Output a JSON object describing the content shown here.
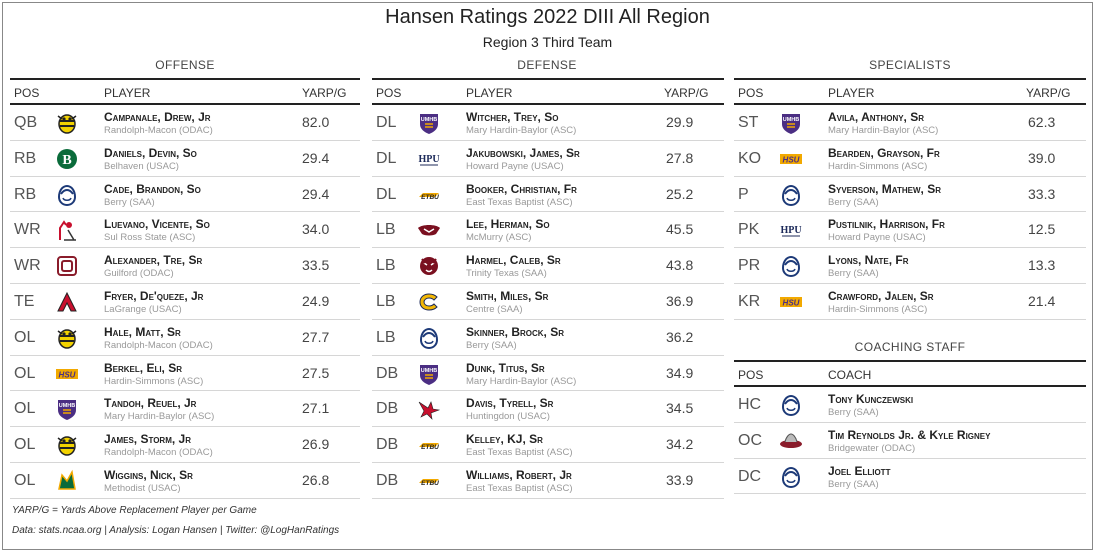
{
  "title": "Hansen Ratings 2022 DIII All Region",
  "subtitle": "Region 3 Third Team",
  "offense": {
    "section_label": "OFFENSE",
    "headers": {
      "pos": "POS",
      "player": "PLAYER",
      "value": "YARP/G"
    },
    "rows": [
      {
        "pos": "QB",
        "name": "Campanale, Drew, Jr",
        "school": "Randolph-Macon (ODAC)",
        "value": "82.0",
        "logo": "yellowjacket-logo"
      },
      {
        "pos": "RB",
        "name": "Daniels, Devin, So",
        "school": "Belhaven (USAC)",
        "value": "29.4",
        "logo": "belhaven-b-logo"
      },
      {
        "pos": "RB",
        "name": "Cade, Brandon, So",
        "school": "Berry (SAA)",
        "value": "29.4",
        "logo": "berry-viking-logo"
      },
      {
        "pos": "WR",
        "name": "Luevano, Vicente, So",
        "school": "Sul Ross State (ASC)",
        "value": "34.0",
        "logo": "sul-ross-logo"
      },
      {
        "pos": "WR",
        "name": "Alexander, Tre, Sr",
        "school": "Guilford (ODAC)",
        "value": "33.5",
        "logo": "guilford-logo"
      },
      {
        "pos": "TE",
        "name": "Fryer, De'queze, Jr",
        "school": "LaGrange (USAC)",
        "value": "24.9",
        "logo": "lagrange-logo"
      },
      {
        "pos": "OL",
        "name": "Hale, Matt, Sr",
        "school": "Randolph-Macon (ODAC)",
        "value": "27.7",
        "logo": "yellowjacket-logo"
      },
      {
        "pos": "OL",
        "name": "Berkel, Eli, Sr",
        "school": "Hardin-Simmons (ASC)",
        "value": "27.5",
        "logo": "hsu-logo"
      },
      {
        "pos": "OL",
        "name": "Tandoh, Reuel, Jr",
        "school": "Mary Hardin-Baylor (ASC)",
        "value": "27.1",
        "logo": "umhb-logo"
      },
      {
        "pos": "OL",
        "name": "James, Storm, Jr",
        "school": "Randolph-Macon (ODAC)",
        "value": "26.9",
        "logo": "yellowjacket-logo"
      },
      {
        "pos": "OL",
        "name": "Wiggins, Nick, Sr",
        "school": "Methodist (USAC)",
        "value": "26.8",
        "logo": "methodist-logo"
      }
    ]
  },
  "defense": {
    "section_label": "DEFENSE",
    "headers": {
      "pos": "POS",
      "player": "PLAYER",
      "value": "YARP/G"
    },
    "rows": [
      {
        "pos": "DL",
        "name": "Witcher, Trey, So",
        "school": "Mary Hardin-Baylor (ASC)",
        "value": "29.9",
        "logo": "umhb-logo"
      },
      {
        "pos": "DL",
        "name": "Jakubowski, James, Sr",
        "school": "Howard Payne (USAC)",
        "value": "27.8",
        "logo": "hpu-logo"
      },
      {
        "pos": "DL",
        "name": "Booker, Christian, Fr",
        "school": "East Texas Baptist (ASC)",
        "value": "25.2",
        "logo": "etbu-logo"
      },
      {
        "pos": "LB",
        "name": "Lee, Herman, So",
        "school": "McMurry (ASC)",
        "value": "45.5",
        "logo": "mcmurry-logo"
      },
      {
        "pos": "LB",
        "name": "Harmel, Caleb, Sr",
        "school": "Trinity Texas (SAA)",
        "value": "43.8",
        "logo": "trinity-tiger-logo"
      },
      {
        "pos": "LB",
        "name": "Smith, Miles, Sr",
        "school": "Centre (SAA)",
        "value": "36.9",
        "logo": "centre-c-logo"
      },
      {
        "pos": "LB",
        "name": "Skinner, Brock, Sr",
        "school": "Berry (SAA)",
        "value": "36.2",
        "logo": "berry-viking-logo"
      },
      {
        "pos": "DB",
        "name": "Dunk, Titus, Sr",
        "school": "Mary Hardin-Baylor (ASC)",
        "value": "34.9",
        "logo": "umhb-logo"
      },
      {
        "pos": "DB",
        "name": "Davis, Tyrell, Sr",
        "school": "Huntingdon (USAC)",
        "value": "34.5",
        "logo": "huntingdon-hawk-logo"
      },
      {
        "pos": "DB",
        "name": "Kelley, KJ, Sr",
        "school": "East Texas Baptist (ASC)",
        "value": "34.2",
        "logo": "etbu-logo"
      },
      {
        "pos": "DB",
        "name": "Williams, Robert, Jr",
        "school": "East Texas Baptist (ASC)",
        "value": "33.9",
        "logo": "etbu-logo"
      }
    ]
  },
  "specialists": {
    "section_label": "SPECIALISTS",
    "headers": {
      "pos": "POS",
      "player": "PLAYER",
      "value": "YARP/G"
    },
    "rows": [
      {
        "pos": "ST",
        "name": "Avila, Anthony, Sr",
        "school": "Mary Hardin-Baylor (ASC)",
        "value": "62.3",
        "logo": "umhb-logo"
      },
      {
        "pos": "KO",
        "name": "Bearden, Grayson, Fr",
        "school": "Hardin-Simmons (ASC)",
        "value": "39.0",
        "logo": "hsu-logo"
      },
      {
        "pos": "P",
        "name": "Syverson, Mathew, Sr",
        "school": "Berry (SAA)",
        "value": "33.3",
        "logo": "berry-viking-logo"
      },
      {
        "pos": "PK",
        "name": "Pustilnik, Harrison, Fr",
        "school": "Howard Payne (USAC)",
        "value": "12.5",
        "logo": "hpu-logo"
      },
      {
        "pos": "PR",
        "name": "Lyons, Nate, Fr",
        "school": "Berry (SAA)",
        "value": "13.3",
        "logo": "berry-viking-logo"
      },
      {
        "pos": "KR",
        "name": "Crawford, Jalen, Sr",
        "school": "Hardin-Simmons (ASC)",
        "value": "21.4",
        "logo": "hsu-logo"
      }
    ]
  },
  "coaching": {
    "section_label": "COACHING STAFF",
    "headers": {
      "pos": "POS",
      "player": "COACH"
    },
    "rows": [
      {
        "pos": "HC",
        "name": "Tony Kunczewski",
        "school": "Berry (SAA)",
        "logo": "berry-viking-logo"
      },
      {
        "pos": "OC",
        "name": "Tim Reynolds Jr. & Kyle Rigney",
        "school": "Bridgewater (ODAC)",
        "logo": "bridgewater-logo"
      },
      {
        "pos": "DC",
        "name": "Joel Elliott",
        "school": "Berry (SAA)",
        "logo": "berry-viking-logo"
      }
    ]
  },
  "footnotes": {
    "definition": "YARP/G = Yards Above Replacement Player per Game",
    "credits": "Data: stats.ncaa.org | Analysis: Logan Hansen | Twitter: @LogHanRatings"
  },
  "logo_text": {
    "hsu": "HSU",
    "hpu": "HPU",
    "umhb": "UMHB",
    "etbu": "ETBU"
  },
  "colors": {
    "umhb_purple": "#4b2e83",
    "hsu_gold": "#f2a900",
    "hpu_navy": "#1c2a5a",
    "berry_navy": "#1d3a78",
    "yellowjacket": "#f2d200",
    "belhaven_green": "#0a6b3a",
    "lagrange_red": "#c8102e",
    "centre_gold": "#f2b705"
  }
}
